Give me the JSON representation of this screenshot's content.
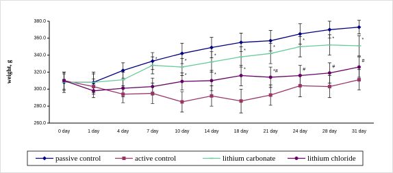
{
  "chart_data": {
    "type": "line",
    "ylabel": "weight, g",
    "categories": [
      "0 day",
      "1 day",
      "4 day",
      "7 day",
      "10 day",
      "14 day",
      "18 day",
      "21 day",
      "24 day",
      "28 day",
      "31 day"
    ],
    "ylim": [
      260,
      380
    ],
    "yticks": [
      {
        "value": 260,
        "label": "260.0"
      },
      {
        "value": 280,
        "label": "280.0"
      },
      {
        "value": 300,
        "label": "300.0"
      },
      {
        "value": 320,
        "label": "320.0"
      },
      {
        "value": 340,
        "label": "340.0"
      },
      {
        "value": 360,
        "label": "360.0"
      },
      {
        "value": 380,
        "label": "380.0"
      }
    ],
    "legend": "bottom",
    "series": [
      {
        "name": "passive control",
        "color": "#000080",
        "marker": "diamond",
        "values": [
          308,
          308,
          322,
          333,
          342,
          349,
          355,
          357,
          365,
          370,
          373
        ],
        "errors": [
          12,
          12,
          9,
          10,
          12,
          12,
          11,
          12,
          12,
          10,
          8
        ]
      },
      {
        "name": "active control",
        "color": "#993366",
        "marker": "square",
        "values": [
          310,
          303,
          294,
          295,
          285,
          292,
          286,
          293,
          304,
          303,
          311
        ],
        "errors": [
          10,
          9,
          10,
          12,
          12,
          12,
          14,
          12,
          13,
          13,
          12
        ]
      },
      {
        "name": "lithium carbonate",
        "color": "#66cc99",
        "marker": "dash",
        "values": [
          308,
          308,
          311,
          328,
          326,
          332,
          338,
          342,
          350,
          352,
          351
        ],
        "errors": [
          10,
          10,
          9,
          10,
          10,
          12,
          12,
          12,
          12,
          12,
          12
        ],
        "annotations": [
          null,
          null,
          null,
          "*",
          "*",
          "*",
          "*",
          "*",
          "*",
          "*",
          "*"
        ]
      },
      {
        "name": "lithium chloride",
        "color": "#660066",
        "marker": "circle",
        "values": [
          310,
          298,
          301,
          303,
          309,
          310,
          316,
          314,
          316,
          319,
          326
        ],
        "errors": [
          10,
          8,
          10,
          10,
          10,
          12,
          12,
          12,
          12,
          12,
          12
        ],
        "annotations": [
          null,
          null,
          null,
          null,
          "*",
          "*",
          "*",
          "*#",
          "#",
          "#",
          "#"
        ]
      }
    ]
  }
}
